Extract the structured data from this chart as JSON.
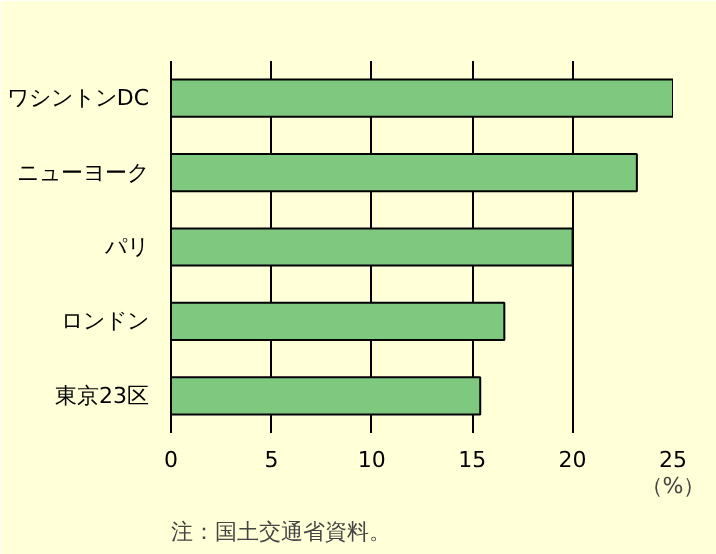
{
  "chart_data": {
    "type": "bar",
    "orientation": "horizontal",
    "categories": [
      "ワシントンDC",
      "ニューヨーク",
      "パリ",
      "ロンドン",
      "東京23区"
    ],
    "values": [
      25,
      23.2,
      20,
      16.6,
      15.4
    ],
    "color": "#7fc87f",
    "xlim": [
      0,
      25
    ],
    "xticks": [
      0,
      5,
      10,
      15,
      20,
      25
    ],
    "xlabel": "（%）",
    "grid": "x",
    "annotations": [
      "注：国土交通省資料。"
    ]
  }
}
